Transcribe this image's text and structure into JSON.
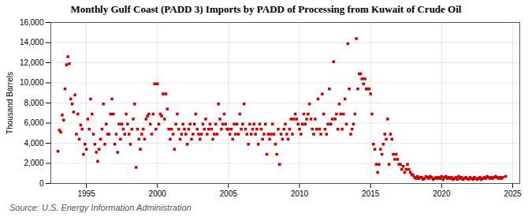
{
  "chart_data": {
    "type": "scatter",
    "title": "Monthly Gulf Coast (PADD 3) Imports by PADD of Processing from Kuwait of Crude Oil",
    "ylabel": "Thousand Barrels",
    "source": "Source: U.S. Energy Information Administration",
    "color": "#cc0000",
    "marker": "square",
    "grid": true,
    "xlim": [
      1992.5,
      2025.5
    ],
    "xticks": [
      1995,
      2000,
      2005,
      2010,
      2015,
      2020,
      2025
    ],
    "ylim": [
      0,
      16000
    ],
    "yticks": [
      0,
      {
        "value": 2000,
        "label": "2,000"
      },
      {
        "value": 4000,
        "label": "4,000"
      },
      {
        "value": 6000,
        "label": "6,000"
      },
      {
        "value": 8000,
        "label": "8,000"
      },
      {
        "value": 10000,
        "label": "10,000"
      },
      {
        "value": 12000,
        "label": "12,000"
      },
      {
        "value": 14000,
        "label": "14,000"
      },
      {
        "value": 16000,
        "label": "16,000"
      }
    ],
    "x": [
      1993.0,
      1993.1,
      1993.2,
      1993.3,
      1993.4,
      1993.5,
      1993.6,
      1993.7,
      1993.8,
      1993.9,
      1994.0,
      1994.1,
      1994.2,
      1994.3,
      1994.4,
      1994.5,
      1994.6,
      1994.7,
      1994.8,
      1994.9,
      1995.0,
      1995.1,
      1995.2,
      1995.3,
      1995.4,
      1995.5,
      1995.6,
      1995.7,
      1995.8,
      1995.9,
      1996.0,
      1996.1,
      1996.2,
      1996.3,
      1996.4,
      1996.5,
      1996.6,
      1996.7,
      1996.8,
      1996.9,
      1997.0,
      1997.1,
      1997.2,
      1997.3,
      1997.4,
      1997.5,
      1997.6,
      1997.7,
      1997.8,
      1997.9,
      1998.0,
      1998.1,
      1998.2,
      1998.3,
      1998.4,
      1998.5,
      1998.6,
      1998.7,
      1998.8,
      1998.9,
      1999.0,
      1999.1,
      1999.2,
      1999.3,
      1999.4,
      1999.5,
      1999.6,
      1999.7,
      1999.8,
      1999.9,
      2000.0,
      2000.1,
      2000.2,
      2000.3,
      2000.4,
      2000.5,
      2000.6,
      2000.7,
      2000.8,
      2000.9,
      2001.0,
      2001.1,
      2001.2,
      2001.3,
      2001.4,
      2001.5,
      2001.6,
      2001.7,
      2001.8,
      2001.9,
      2002.0,
      2002.1,
      2002.2,
      2002.3,
      2002.4,
      2002.5,
      2002.6,
      2002.7,
      2002.8,
      2002.9,
      2003.0,
      2003.1,
      2003.2,
      2003.3,
      2003.4,
      2003.5,
      2003.6,
      2003.7,
      2003.8,
      2003.9,
      2004.0,
      2004.1,
      2004.2,
      2004.3,
      2004.4,
      2004.5,
      2004.6,
      2004.7,
      2004.8,
      2004.9,
      2005.0,
      2005.1,
      2005.2,
      2005.3,
      2005.4,
      2005.5,
      2005.6,
      2005.7,
      2005.8,
      2005.9,
      2006.0,
      2006.1,
      2006.2,
      2006.3,
      2006.4,
      2006.5,
      2006.6,
      2006.7,
      2006.8,
      2006.9,
      2007.0,
      2007.1,
      2007.2,
      2007.3,
      2007.4,
      2007.5,
      2007.6,
      2007.7,
      2007.8,
      2007.9,
      2008.0,
      2008.1,
      2008.2,
      2008.3,
      2008.4,
      2008.5,
      2008.6,
      2008.7,
      2008.8,
      2008.9,
      2009.0,
      2009.1,
      2009.2,
      2009.3,
      2009.4,
      2009.5,
      2009.6,
      2009.7,
      2009.8,
      2009.9,
      2010.0,
      2010.1,
      2010.2,
      2010.3,
      2010.4,
      2010.5,
      2010.6,
      2010.7,
      2010.8,
      2010.9,
      2011.0,
      2011.1,
      2011.2,
      2011.3,
      2011.4,
      2011.5,
      2011.6,
      2011.7,
      2011.8,
      2011.9,
      2012.0,
      2012.1,
      2012.2,
      2012.3,
      2012.4,
      2012.5,
      2012.6,
      2012.7,
      2012.8,
      2012.9,
      2013.0,
      2013.1,
      2013.2,
      2013.3,
      2013.4,
      2013.5,
      2013.6,
      2013.7,
      2013.8,
      2013.9,
      2014.0,
      2014.1,
      2014.2,
      2014.3,
      2014.4,
      2014.5,
      2014.6,
      2014.7,
      2014.8,
      2014.9,
      2015.0,
      2015.1,
      2015.2,
      2015.3,
      2015.4,
      2015.5,
      2015.6,
      2015.7,
      2015.8,
      2015.9,
      2016.0,
      2016.1,
      2016.2,
      2016.3,
      2016.4,
      2016.5,
      2016.6,
      2016.7,
      2016.8,
      2016.9,
      2017.0,
      2017.1,
      2017.2,
      2017.3,
      2017.4,
      2017.5,
      2017.6,
      2017.7,
      2017.8,
      2017.9,
      2018.0,
      2018.1,
      2018.2,
      2018.3,
      2018.4,
      2018.5,
      2018.6,
      2018.7,
      2018.8,
      2018.9,
      2019.0,
      2019.1,
      2019.2,
      2019.3,
      2019.4,
      2019.5,
      2019.6,
      2019.7,
      2019.8,
      2019.9,
      2020.0,
      2020.1,
      2020.2,
      2020.3,
      2020.4,
      2020.5,
      2020.6,
      2020.7,
      2020.8,
      2020.9,
      2021.0,
      2021.1,
      2021.2,
      2021.3,
      2021.4,
      2021.5,
      2021.6,
      2021.7,
      2021.8,
      2021.9,
      2022.0,
      2022.1,
      2022.2,
      2022.3,
      2022.4,
      2022.5,
      2022.6,
      2022.7,
      2022.8,
      2022.9,
      2023.0,
      2023.1,
      2023.2,
      2023.3,
      2023.4,
      2023.5,
      2023.6,
      2023.7,
      2023.8,
      2023.9,
      2024.0,
      2024.1,
      2024.2,
      2024.3,
      2024.5
    ],
    "values": [
      3200,
      5300,
      5100,
      6800,
      6300,
      9400,
      11800,
      12600,
      11900,
      8400,
      7900,
      7100,
      8800,
      4900,
      6900,
      4400,
      5800,
      5400,
      2900,
      3900,
      3400,
      6400,
      5400,
      8400,
      6900,
      4900,
      3900,
      3100,
      2200,
      3400,
      4400,
      5400,
      7900,
      3900,
      5900,
      4900,
      4900,
      6900,
      8400,
      6900,
      3900,
      4900,
      3100,
      5900,
      4400,
      5900,
      5400,
      4900,
      6900,
      5900,
      4900,
      3900,
      5400,
      6400,
      7900,
      1600,
      5400,
      4400,
      3400,
      4900,
      5400,
      4400,
      6400,
      6700,
      6900,
      5900,
      4900,
      6900,
      9900,
      5400,
      9900,
      5900,
      6900,
      6700,
      8900,
      6400,
      8900,
      7400,
      5400,
      4400,
      5400,
      4900,
      3400,
      5900,
      6900,
      5400,
      4400,
      4900,
      5900,
      5400,
      4900,
      3900,
      5400,
      5900,
      4400,
      4900,
      5900,
      6900,
      5400,
      4900,
      4400,
      4900,
      5900,
      5400,
      6400,
      4900,
      5400,
      5900,
      5400,
      4400,
      4900,
      5900,
      4900,
      7900,
      6400,
      5400,
      5900,
      6900,
      5900,
      5400,
      5400,
      4900,
      5400,
      4400,
      5900,
      4900,
      5900,
      4900,
      6900,
      5400,
      5900,
      7900,
      5400,
      4900,
      3900,
      5900,
      4900,
      5400,
      5900,
      4900,
      5400,
      3900,
      5900,
      5400,
      4400,
      4900,
      5900,
      2900,
      4900,
      4400,
      4900,
      5900,
      4900,
      3900,
      2900,
      5400,
      1900,
      4900,
      4400,
      5400,
      5900,
      4900,
      4400,
      5400,
      6400,
      4900,
      6400,
      6900,
      6400,
      5900,
      5400,
      4900,
      5900,
      6900,
      5900,
      6400,
      6900,
      7900,
      6400,
      5400,
      4900,
      6400,
      5400,
      8400,
      5400,
      4900,
      8900,
      6900,
      5400,
      4900,
      5900,
      9400,
      5900,
      6400,
      12100,
      6400,
      6900,
      5400,
      7900,
      6900,
      5400,
      6900,
      8400,
      5900,
      13900,
      9400,
      4900,
      5400,
      5900,
      6900,
      14400,
      9400,
      10900,
      10900,
      10400,
      9900,
      10400,
      9400,
      9400,
      9400,
      8900,
      6900,
      3900,
      3400,
      1900,
      1100,
      1900,
      3400,
      2900,
      3900,
      4900,
      4400,
      6400,
      1900,
      4900,
      4400,
      2900,
      2400,
      2900,
      2400,
      1900,
      1900,
      1400,
      1700,
      1100,
      1400,
      1900,
      1400,
      1100,
      900,
      800,
      600,
      500,
      700,
      500,
      600,
      600,
      400,
      500,
      700,
      600,
      500,
      700,
      600,
      400,
      500,
      600,
      500,
      600,
      500,
      700,
      400,
      600,
      700,
      500,
      600,
      500,
      600,
      400,
      500,
      600,
      400,
      700,
      500,
      600,
      400,
      500,
      600,
      500,
      400,
      600,
      500,
      400,
      600,
      500,
      400,
      500,
      600,
      400,
      500,
      600,
      500,
      700,
      600,
      500,
      600,
      500,
      600,
      700,
      600,
      500,
      600,
      500,
      600,
      700
    ]
  }
}
